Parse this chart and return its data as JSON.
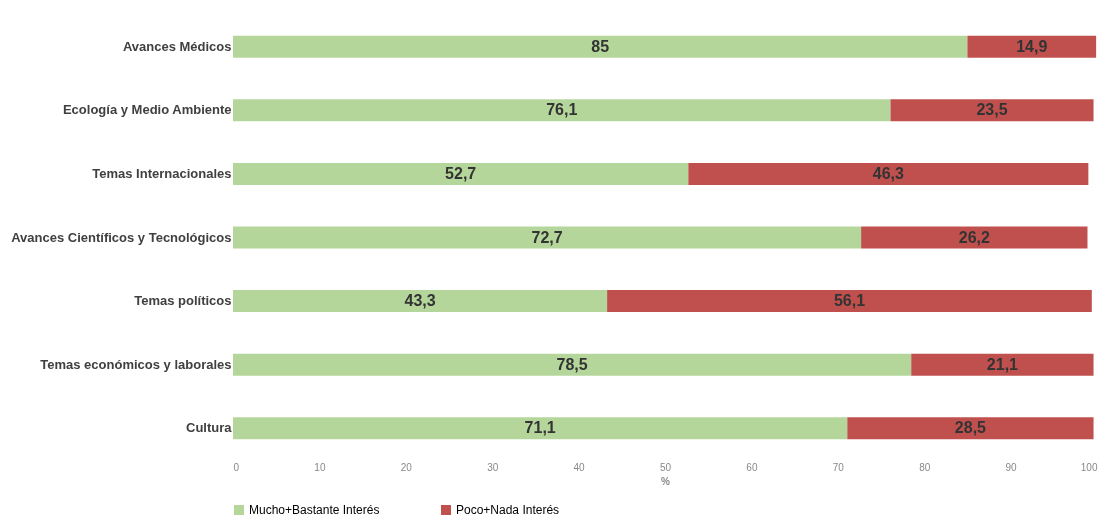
{
  "chart_data": {
    "type": "bar",
    "orientation": "horizontal",
    "stacked": true,
    "xlabel": "%",
    "categories": [
      "Avances Médicos",
      "Ecología y Medio Ambiente",
      "Temas Internacionales",
      "Avances Científicos y Tecnológicos",
      "Temas políticos",
      "Temas económicos y laborales",
      "Cultura"
    ],
    "series": [
      {
        "name": "Mucho+Bastante Interés",
        "color": "#b5d69b",
        "values": [
          85,
          76.1,
          52.7,
          72.7,
          43.3,
          78.5,
          71.1
        ],
        "value_labels": [
          "85",
          "76,1",
          "52,7",
          "72,7",
          "43,3",
          "78,5",
          "71,1"
        ]
      },
      {
        "name": "Poco+Nada Interés",
        "color": "#c0504d",
        "values": [
          14.9,
          23.5,
          46.3,
          26.2,
          56.1,
          21.1,
          28.5
        ],
        "value_labels": [
          "14,9",
          "23,5",
          "46,3",
          "26,2",
          "56,1",
          "21,1",
          "28,5"
        ]
      }
    ],
    "xlim": [
      0,
      100
    ],
    "xticks": [
      0,
      10,
      20,
      30,
      40,
      50,
      60,
      70,
      80,
      90,
      100
    ],
    "grid": false,
    "legend": "bottom"
  }
}
